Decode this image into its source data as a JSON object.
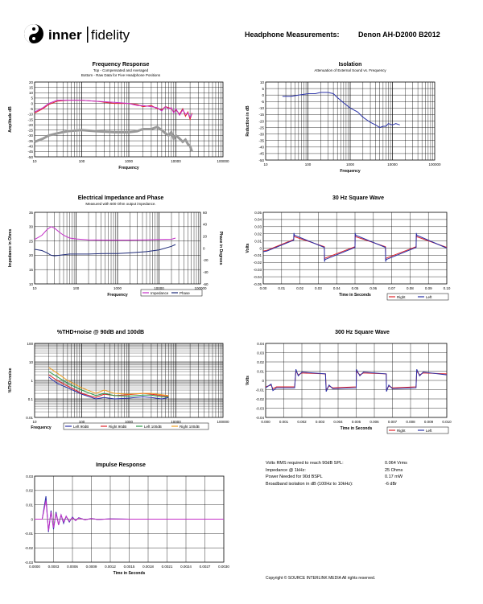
{
  "header": {
    "brand_left": "inner",
    "brand_right": "fidelity",
    "title": "Headphone Measurements:",
    "model": "Denon AH-D2000 B2012"
  },
  "stats": [
    {
      "label": "Volts RMS required to reach 90dB SPL:",
      "value": "0.064 Vrms"
    },
    {
      "label": "Impedance @ 1kHz:",
      "value": "25 Ohms"
    },
    {
      "label": "Power Needed for 90d BSPL",
      "value": "0.17 mW"
    },
    {
      "label": "Broadband isolation in dB (100Hz to 10kHz):",
      "value": "-6 dBr"
    }
  ],
  "copyright": "Copyright © SOURCE INTERLINK MEDIA All rights reserved.",
  "colors": {
    "red": "#e0242b",
    "blue": "#2a32a8",
    "magenta": "#c42fc8",
    "navy": "#1e2a78",
    "gray": "#9a9a9a",
    "green": "#2a9a4a",
    "orange": "#f0a020"
  },
  "chart_data": [
    {
      "id": "fr",
      "type": "line",
      "title": "Frequency Response",
      "subtitle1": "Top -  Compensated and Averaged",
      "subtitle2": "Bottom - Raw Data for Five Headphone Positions",
      "xlabel": "Frequency",
      "ylabel": "Amplitude dB",
      "xscale": "log",
      "xlim": [
        10,
        100000
      ],
      "ylim": [
        -50,
        20
      ],
      "ylabel_step": 5,
      "yticks": [
        "20",
        "15",
        "10",
        "5",
        "0",
        "-5",
        "-10",
        "-15",
        "-20",
        "-25",
        "-30",
        "-35",
        "-40",
        "-45",
        "-50"
      ],
      "xticks": [
        "10",
        "100",
        "1000",
        "10000",
        "100000"
      ],
      "series": [
        {
          "name": "Compensated L",
          "color": "#e0242b",
          "x": [
            10,
            15,
            20,
            30,
            50,
            100,
            200,
            500,
            1000,
            1500,
            2000,
            3000,
            4000,
            5000,
            6000,
            7000,
            8000,
            9000,
            10000,
            12000,
            14000,
            16000,
            18000,
            20000,
            22000
          ],
          "y": [
            -9,
            -5,
            -1,
            2,
            3,
            3,
            2,
            0,
            0,
            -1,
            -3,
            -2,
            -5,
            -6,
            -3,
            -4,
            -5,
            -8,
            -6,
            -10,
            -5,
            -12,
            -8,
            -15,
            -9
          ]
        },
        {
          "name": "Compensated R",
          "color": "#c42fc8",
          "x": [
            10,
            15,
            20,
            30,
            50,
            100,
            200,
            500,
            1000,
            1500,
            2000,
            3000,
            4000,
            5000,
            6000,
            7000,
            8000,
            9000,
            10000,
            12000,
            14000,
            16000,
            18000,
            20000,
            22000
          ],
          "y": [
            -8,
            -4,
            0,
            3,
            3,
            3,
            2,
            1,
            0,
            -2,
            -2,
            -3,
            -4,
            -7,
            -3,
            -5,
            -4,
            -9,
            -5,
            -11,
            -6,
            -10,
            -9,
            -13,
            -10
          ]
        },
        {
          "name": "Raw positions",
          "color": "#9a9a9a",
          "x": [
            10,
            15,
            20,
            30,
            50,
            100,
            200,
            500,
            1000,
            1500,
            2000,
            3000,
            4000,
            5000,
            6000,
            7000,
            8000,
            9000,
            10000,
            12000,
            14000,
            16000,
            18000,
            20000,
            22000
          ],
          "y": [
            -36,
            -33,
            -30,
            -28,
            -26,
            -25,
            -26,
            -27,
            -27,
            -26,
            -24,
            -24,
            -22,
            -25,
            -28,
            -30,
            -27,
            -33,
            -30,
            -33,
            -36,
            -34,
            -38,
            -40,
            -45
          ]
        }
      ]
    },
    {
      "id": "iso",
      "type": "line",
      "title": "Isolation",
      "subtitle1": "Attenuation of External Sound vs. Frequency",
      "xlabel": "Frequency",
      "ylabel": "Reduction in dB",
      "xscale": "log",
      "xlim": [
        10,
        100000
      ],
      "ylim": [
        -50,
        10
      ],
      "yticks": [
        "10",
        "5",
        "0",
        "-5",
        "-10",
        "-15",
        "-20",
        "-25",
        "-30",
        "-35",
        "-40",
        "-45",
        "-50"
      ],
      "xticks": [
        "10",
        "100",
        "1000",
        "10000",
        "100000"
      ],
      "series": [
        {
          "name": "Isolation",
          "color": "#2a32a8",
          "x": [
            25,
            40,
            60,
            100,
            150,
            200,
            300,
            400,
            500,
            700,
            1000,
            1500,
            2000,
            3000,
            4000,
            5000,
            6000,
            7000,
            8000,
            10000,
            12000,
            15000
          ],
          "y": [
            -1,
            -1,
            0,
            1,
            1,
            2,
            2,
            1,
            -2,
            -6,
            -10,
            -13,
            -17,
            -21,
            -23,
            -25,
            -24,
            -24,
            -22,
            -23,
            -22,
            -23
          ]
        }
      ]
    },
    {
      "id": "imp",
      "type": "line",
      "title": "Electrical Impedance and Phase",
      "subtitle1": "Measured with 600 Ohm output impedance.",
      "xlabel": "Frequency",
      "ylabel": "Impedance in Ohms",
      "y2label": "Phase in Degrees",
      "xscale": "log",
      "xlim": [
        10,
        100000
      ],
      "ylim": [
        10,
        35
      ],
      "y2lim": [
        -60,
        60
      ],
      "yticks": [
        "35",
        "30",
        "25",
        "20",
        "15",
        "10"
      ],
      "y2ticks": [
        "60",
        "40",
        "20",
        "0",
        "-20",
        "-40",
        "-60"
      ],
      "xticks": [
        "10",
        "100",
        "1000",
        "10000",
        "100000"
      ],
      "legend": [
        "Impedance",
        "Phase"
      ],
      "series": [
        {
          "name": "Impedance",
          "color": "#c42fc8",
          "axis": "y",
          "x": [
            10,
            15,
            20,
            25,
            30,
            40,
            50,
            70,
            100,
            200,
            500,
            1000,
            2000,
            5000,
            10000,
            20000,
            25000
          ],
          "y": [
            25.5,
            27,
            29,
            30,
            29.5,
            28,
            27,
            26,
            25.7,
            25.4,
            25.3,
            25.3,
            25.3,
            25.4,
            25.5,
            25.6,
            26
          ]
        },
        {
          "name": "Phase",
          "color": "#1e2a78",
          "axis": "y2",
          "x": [
            10,
            15,
            20,
            25,
            30,
            40,
            50,
            70,
            100,
            200,
            500,
            1000,
            2000,
            5000,
            10000,
            20000,
            25000
          ],
          "y": [
            -2,
            -4,
            -8,
            -12,
            -13,
            -12,
            -11,
            -10,
            -10,
            -10,
            -9,
            -9,
            -8,
            -6,
            -3,
            3,
            6
          ]
        }
      ]
    },
    {
      "id": "sq30",
      "type": "line",
      "title": "30 Hz Square Wave",
      "xlabel": "Time in Seconds",
      "ylabel": "Volts",
      "xlim": [
        0,
        0.1
      ],
      "ylim": [
        -0.05,
        0.05
      ],
      "yticks": [
        "0.05",
        "0.04",
        "0.03",
        "0.02",
        "0.01",
        "0",
        "-0.01",
        "-0.02",
        "-0.03",
        "-0.04",
        "-0.05"
      ],
      "xticks": [
        "0.00",
        "0.01",
        "0.02",
        "0.03",
        "0.04",
        "0.05",
        "0.06",
        "0.07",
        "0.08",
        "0.09",
        "0.10"
      ],
      "legend": [
        "Right",
        "Left"
      ],
      "series": [
        {
          "name": "Right",
          "color": "#e0242b",
          "x": [
            0,
            0.002,
            0.0166,
            0.0167,
            0.017,
            0.0333,
            0.0334,
            0.0337,
            0.05,
            0.0501,
            0.0504,
            0.0666,
            0.0667,
            0.067,
            0.0833,
            0.0834,
            0.0837,
            0.1
          ],
          "y": [
            -0.004,
            -0.003,
            0.012,
            0.018,
            0.016,
            0.002,
            -0.016,
            -0.014,
            0.002,
            0.018,
            0.016,
            0.002,
            -0.016,
            -0.014,
            0.002,
            0.018,
            0.016,
            0.001
          ]
        },
        {
          "name": "Left",
          "color": "#2a32a8",
          "x": [
            0,
            0.002,
            0.0166,
            0.0167,
            0.017,
            0.0333,
            0.0334,
            0.0337,
            0.05,
            0.0501,
            0.0504,
            0.0666,
            0.0667,
            0.067,
            0.0833,
            0.0834,
            0.0837,
            0.1
          ],
          "y": [
            -0.005,
            -0.004,
            0.011,
            0.021,
            0.018,
            0.001,
            -0.019,
            -0.016,
            0.001,
            0.021,
            0.018,
            0.001,
            -0.019,
            -0.016,
            0.001,
            0.021,
            0.018,
            0.0
          ]
        }
      ]
    },
    {
      "id": "thd",
      "type": "line",
      "title": "%THD+noise @ 90dB and 100dB",
      "xlabel": "Frequency",
      "ylabel": "%THD+noise",
      "xscale": "log",
      "yscale": "log",
      "xlim": [
        10,
        100000
      ],
      "ylim": [
        0.01,
        100
      ],
      "yticks": [
        "100",
        "10",
        "1",
        "0.1",
        "0.01"
      ],
      "xticks": [
        "10",
        "100",
        "1000",
        "10000",
        "100000"
      ],
      "legend": [
        "Left 90dB",
        "Right 90dB",
        "Left 100dB",
        "Right 100dB"
      ],
      "series": [
        {
          "name": "Left 90dB",
          "color": "#2a32a8",
          "x": [
            20,
            30,
            50,
            100,
            200,
            300,
            500,
            1000,
            2000,
            3000,
            5000,
            7000
          ],
          "y": [
            1.5,
            0.7,
            0.4,
            0.18,
            0.1,
            0.12,
            0.1,
            0.11,
            0.13,
            0.12,
            0.1,
            0.12
          ]
        },
        {
          "name": "Right 90dB",
          "color": "#e0242b",
          "x": [
            20,
            30,
            50,
            100,
            200,
            300,
            500,
            1000,
            2000,
            3000,
            5000,
            7000
          ],
          "y": [
            2,
            1,
            0.5,
            0.2,
            0.12,
            0.18,
            0.15,
            0.17,
            0.2,
            0.18,
            0.15,
            0.14
          ]
        },
        {
          "name": "Left 100dB",
          "color": "#2a9a4a",
          "x": [
            20,
            30,
            50,
            100,
            200,
            300,
            500,
            1000,
            2000,
            3000,
            5000,
            7000
          ],
          "y": [
            3,
            1.6,
            0.7,
            0.3,
            0.15,
            0.2,
            0.15,
            0.14,
            0.16,
            0.16,
            0.13,
            0.13
          ]
        },
        {
          "name": "Right 100dB",
          "color": "#f0a020",
          "x": [
            20,
            30,
            50,
            100,
            200,
            300,
            500,
            1000,
            2000,
            3000,
            5000,
            7000
          ],
          "y": [
            5,
            2.5,
            1,
            0.4,
            0.2,
            0.3,
            0.2,
            0.18,
            0.2,
            0.2,
            0.17,
            0.15
          ]
        }
      ]
    },
    {
      "id": "sq300",
      "type": "line",
      "title": "300 Hz Square Wave",
      "xlabel": "Time in Seconds",
      "ylabel": "Volts",
      "xlim": [
        0,
        0.01
      ],
      "ylim": [
        -0.04,
        0.04
      ],
      "yticks": [
        "0.04",
        "0.03",
        "0.02",
        "0.01",
        "0",
        "-0.01",
        "-0.02",
        "-0.03",
        "-0.04"
      ],
      "xticks": [
        "0.000",
        "0.001",
        "0.002",
        "0.003",
        "0.004",
        "0.005",
        "0.006",
        "0.007",
        "0.008",
        "0.009",
        "0.010"
      ],
      "legend": [
        "Right",
        "Left"
      ],
      "series": [
        {
          "name": "Right",
          "color": "#e0242b",
          "x": [
            0,
            0.0003,
            0.0004,
            0.0006,
            0.0016,
            0.00167,
            0.0018,
            0.002,
            0.0033,
            0.00334,
            0.0035,
            0.0037,
            0.005,
            0.00501,
            0.0052,
            0.0054,
            0.00666,
            0.00667,
            0.0068,
            0.007,
            0.0083,
            0.00834,
            0.0085,
            0.0087,
            0.01
          ],
          "y": [
            -0.007,
            -0.005,
            -0.009,
            -0.007,
            -0.007,
            0.01,
            0.006,
            0.008,
            0.007,
            -0.01,
            -0.006,
            -0.008,
            -0.007,
            0.01,
            0.006,
            0.008,
            0.007,
            -0.01,
            -0.006,
            -0.008,
            -0.007,
            0.01,
            0.006,
            0.008,
            0.007
          ]
        },
        {
          "name": "Left",
          "color": "#2a32a8",
          "x": [
            0,
            0.0003,
            0.0004,
            0.0006,
            0.0016,
            0.00167,
            0.0018,
            0.002,
            0.0033,
            0.00334,
            0.0035,
            0.0037,
            0.005,
            0.00501,
            0.0052,
            0.0054,
            0.00666,
            0.00667,
            0.0068,
            0.007,
            0.0083,
            0.00834,
            0.0085,
            0.0087,
            0.01
          ],
          "y": [
            -0.008,
            -0.004,
            -0.011,
            -0.008,
            -0.008,
            0.012,
            0.005,
            0.009,
            0.007,
            -0.012,
            -0.005,
            -0.009,
            -0.008,
            0.012,
            0.005,
            0.009,
            0.007,
            -0.012,
            -0.005,
            -0.009,
            -0.008,
            0.012,
            0.005,
            0.009,
            0.006
          ]
        }
      ]
    },
    {
      "id": "imp_resp",
      "type": "line",
      "title": "Impulse Response",
      "xlabel": "Time in Seconds",
      "ylabel": "",
      "xlim": [
        0,
        0.003
      ],
      "ylim": [
        -0.03,
        0.03
      ],
      "yticks": [
        "0.03",
        "0.02",
        "0.01",
        "0",
        "-0.01",
        "-0.02",
        "-0.03"
      ],
      "xticks": [
        "0.0000",
        "0.0003",
        "0.0006",
        "0.0009",
        "0.0012",
        "0.0015",
        "0.0018",
        "0.0021",
        "0.0024",
        "0.0027",
        "0.0030"
      ],
      "series": [
        {
          "name": "Left",
          "color": "#2a32a8",
          "x": [
            0,
            0.00012,
            0.00018,
            0.00022,
            0.00026,
            0.0003,
            0.00034,
            0.00038,
            0.00042,
            0.00046,
            0.0005,
            0.00055,
            0.0006,
            0.00065,
            0.0007,
            0.0008,
            0.0009,
            0.001,
            0.0012,
            0.0015,
            0.002,
            0.003
          ],
          "y": [
            0,
            0,
            0.016,
            -0.009,
            0.006,
            -0.007,
            0.005,
            -0.004,
            0.003,
            -0.003,
            0.002,
            -0.002,
            0.0015,
            -0.001,
            0.001,
            -0.0005,
            0.0005,
            -0.0003,
            0.0002,
            0,
            0,
            0
          ]
        },
        {
          "name": "Right",
          "color": "#c42fc8",
          "x": [
            0,
            0.00012,
            0.00018,
            0.00022,
            0.00026,
            0.0003,
            0.00034,
            0.00038,
            0.00042,
            0.00046,
            0.0005,
            0.00055,
            0.0006,
            0.00065,
            0.0007,
            0.0008,
            0.0009,
            0.001,
            0.0012,
            0.0015,
            0.002,
            0.003
          ],
          "y": [
            0,
            0,
            0.013,
            -0.008,
            0.005,
            -0.006,
            0.004,
            -0.004,
            0.003,
            -0.002,
            0.002,
            -0.0015,
            0.001,
            -0.001,
            0.0008,
            -0.0004,
            0.0004,
            -0.0002,
            0.0001,
            0,
            0,
            0
          ]
        }
      ]
    }
  ]
}
